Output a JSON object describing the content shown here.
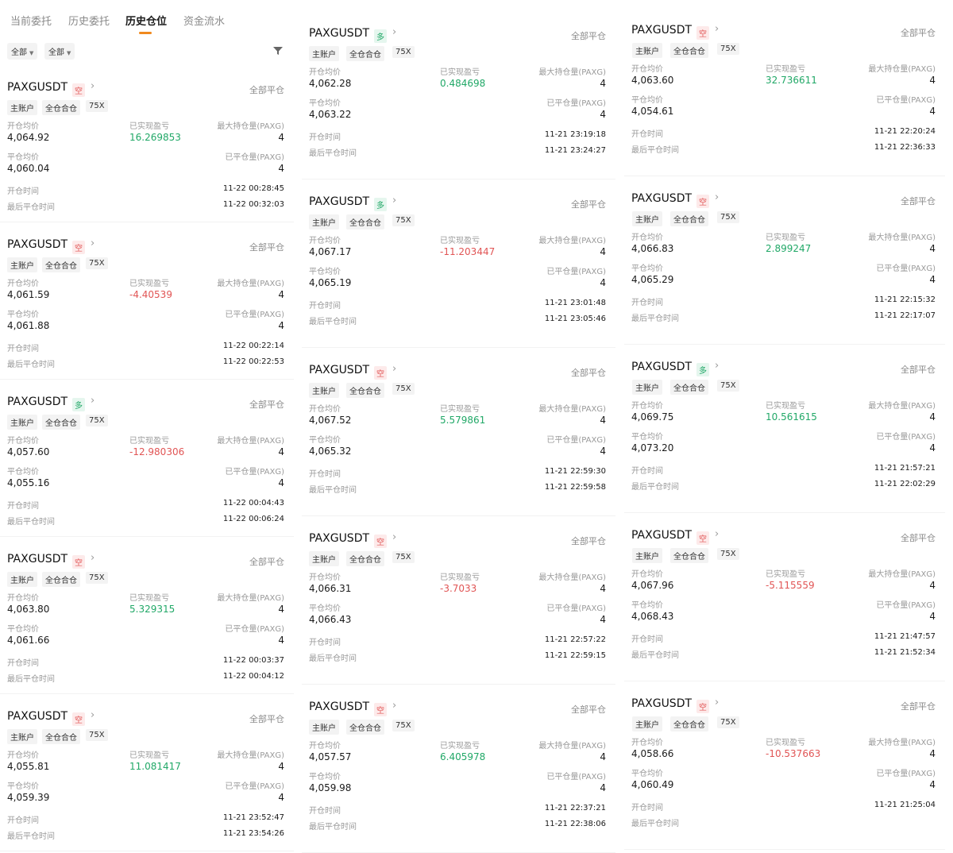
{
  "tabs": [
    {
      "label": "当前委托"
    },
    {
      "label": "历史委托"
    },
    {
      "label": "历史仓位"
    },
    {
      "label": "资金流水"
    }
  ],
  "filters": [
    {
      "label": "全部"
    },
    {
      "label": "全部"
    }
  ],
  "labels": {
    "open_avg": "开仓均价",
    "close_avg": "平仓均价",
    "realized_pnl": "已实现盈亏",
    "max_position": "最大持仓量(PAXG)",
    "closed_qty": "已平仓量(PAXG)",
    "open_time": "开仓时间",
    "last_close_time": "最后平仓时间",
    "close_all": "全部平仓",
    "account": "主账户",
    "margin_mode": "全仓合仓",
    "leverage": "75X"
  },
  "colors": {
    "profit": "#21a867",
    "loss": "#e15555",
    "active_tab": "#f0891e"
  },
  "positions": [
    {
      "symbol": "PAXGUSDT",
      "side": "空",
      "open_avg": "4,064.92",
      "close_avg": "4,060.04",
      "pnl": "16.269853",
      "max_qty": "4",
      "closed_qty": "4",
      "open_time": "11-22 00:28:45",
      "close_time": "11-22 00:32:03"
    },
    {
      "symbol": "PAXGUSDT",
      "side": "空",
      "open_avg": "4,061.59",
      "close_avg": "4,061.88",
      "pnl": "-4.40539",
      "max_qty": "4",
      "closed_qty": "4",
      "open_time": "11-22 00:22:14",
      "close_time": "11-22 00:22:53"
    },
    {
      "symbol": "PAXGUSDT",
      "side": "多",
      "open_avg": "4,057.60",
      "close_avg": "4,055.16",
      "pnl": "-12.980306",
      "max_qty": "4",
      "closed_qty": "4",
      "open_time": "11-22 00:04:43",
      "close_time": "11-22 00:06:24"
    },
    {
      "symbol": "PAXGUSDT",
      "side": "空",
      "open_avg": "4,063.80",
      "close_avg": "4,061.66",
      "pnl": "5.329315",
      "max_qty": "4",
      "closed_qty": "4",
      "open_time": "11-22 00:03:37",
      "close_time": "11-22 00:04:12"
    },
    {
      "symbol": "PAXGUSDT",
      "side": "空",
      "open_avg": "4,055.81",
      "close_avg": "4,059.39",
      "pnl": "11.081417",
      "max_qty": "4",
      "closed_qty": "4",
      "open_time": "11-21 23:52:47",
      "close_time": "11-21 23:54:26"
    },
    {
      "symbol": "PAXGUSDT",
      "side": "多",
      "open_avg": "4,062.28",
      "close_avg": "4,063.22",
      "pnl": "0.484698",
      "max_qty": "4",
      "closed_qty": "4",
      "open_time": "11-21 23:19:18",
      "close_time": "11-21 23:24:27"
    },
    {
      "symbol": "PAXGUSDT",
      "side": "多",
      "open_avg": "4,067.17",
      "close_avg": "4,065.19",
      "pnl": "-11.203447",
      "max_qty": "4",
      "closed_qty": "4",
      "open_time": "11-21 23:01:48",
      "close_time": "11-21 23:05:46"
    },
    {
      "symbol": "PAXGUSDT",
      "side": "空",
      "open_avg": "4,067.52",
      "close_avg": "4,065.32",
      "pnl": "5.579861",
      "max_qty": "4",
      "closed_qty": "4",
      "open_time": "11-21 22:59:30",
      "close_time": "11-21 22:59:58"
    },
    {
      "symbol": "PAXGUSDT",
      "side": "空",
      "open_avg": "4,066.31",
      "close_avg": "4,066.43",
      "pnl": "-3.7033",
      "max_qty": "4",
      "closed_qty": "4",
      "open_time": "11-21 22:57:22",
      "close_time": "11-21 22:59:15"
    },
    {
      "symbol": "PAXGUSDT",
      "side": "空",
      "open_avg": "4,057.57",
      "close_avg": "4,059.98",
      "pnl": "6.405978",
      "max_qty": "4",
      "closed_qty": "4",
      "open_time": "11-21 22:37:21",
      "close_time": "11-21 22:38:06"
    },
    {
      "symbol": "PAXGUSDT",
      "side": "空",
      "open_avg": "4,063.60",
      "close_avg": "4,054.61",
      "pnl": "32.736611",
      "max_qty": "4",
      "closed_qty": "4",
      "open_time": "11-21 22:20:24",
      "close_time": "11-21 22:36:33"
    },
    {
      "symbol": "PAXGUSDT",
      "side": "空",
      "open_avg": "4,066.83",
      "close_avg": "4,065.29",
      "pnl": "2.899247",
      "max_qty": "4",
      "closed_qty": "4",
      "open_time": "11-21 22:15:32",
      "close_time": "11-21 22:17:07"
    },
    {
      "symbol": "PAXGUSDT",
      "side": "多",
      "open_avg": "4,069.75",
      "close_avg": "4,073.20",
      "pnl": "10.561615",
      "max_qty": "4",
      "closed_qty": "4",
      "open_time": "11-21 21:57:21",
      "close_time": "11-21 22:02:29"
    },
    {
      "symbol": "PAXGUSDT",
      "side": "空",
      "open_avg": "4,067.96",
      "close_avg": "4,068.43",
      "pnl": "-5.115559",
      "max_qty": "4",
      "closed_qty": "4",
      "open_time": "11-21 21:47:57",
      "close_time": "11-21 21:52:34"
    },
    {
      "symbol": "PAXGUSDT",
      "side": "空",
      "open_avg": "4,058.66",
      "close_avg": "4,060.49",
      "pnl": "-10.537663",
      "max_qty": "4",
      "closed_qty": "4",
      "open_time": "11-21 21:25:04",
      "close_time": ""
    }
  ]
}
